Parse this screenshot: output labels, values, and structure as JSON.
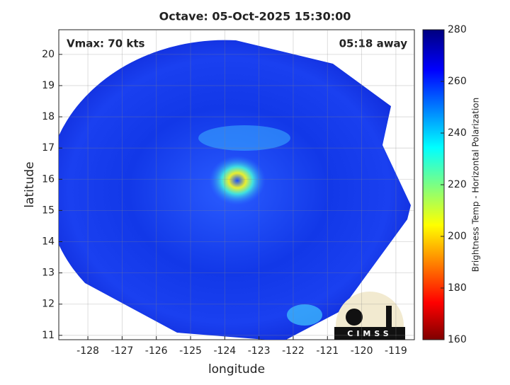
{
  "chart_data": {
    "type": "map",
    "title": "Octave: 05-Oct-2025 15:30:00",
    "xlabel": "longitude",
    "ylabel": "latitude",
    "xlim": [
      -128.85,
      -118.46
    ],
    "ylim": [
      10.86,
      20.79
    ],
    "xticks": [
      -128,
      -127,
      -126,
      -125,
      -124,
      -123,
      -122,
      -121,
      -120,
      -119
    ],
    "yticks": [
      11,
      12,
      13,
      14,
      15,
      16,
      17,
      18,
      19,
      20
    ],
    "grid": true,
    "annotations": {
      "left": "Vmax: 70 kts",
      "right": "05:18 away"
    },
    "logo": "CIMSS",
    "colorbar": {
      "label": "Brightness Temp - Horizontal Polarization",
      "lim": [
        160,
        280
      ],
      "ticks": [
        160,
        180,
        200,
        220,
        240,
        260,
        280
      ]
    }
  }
}
